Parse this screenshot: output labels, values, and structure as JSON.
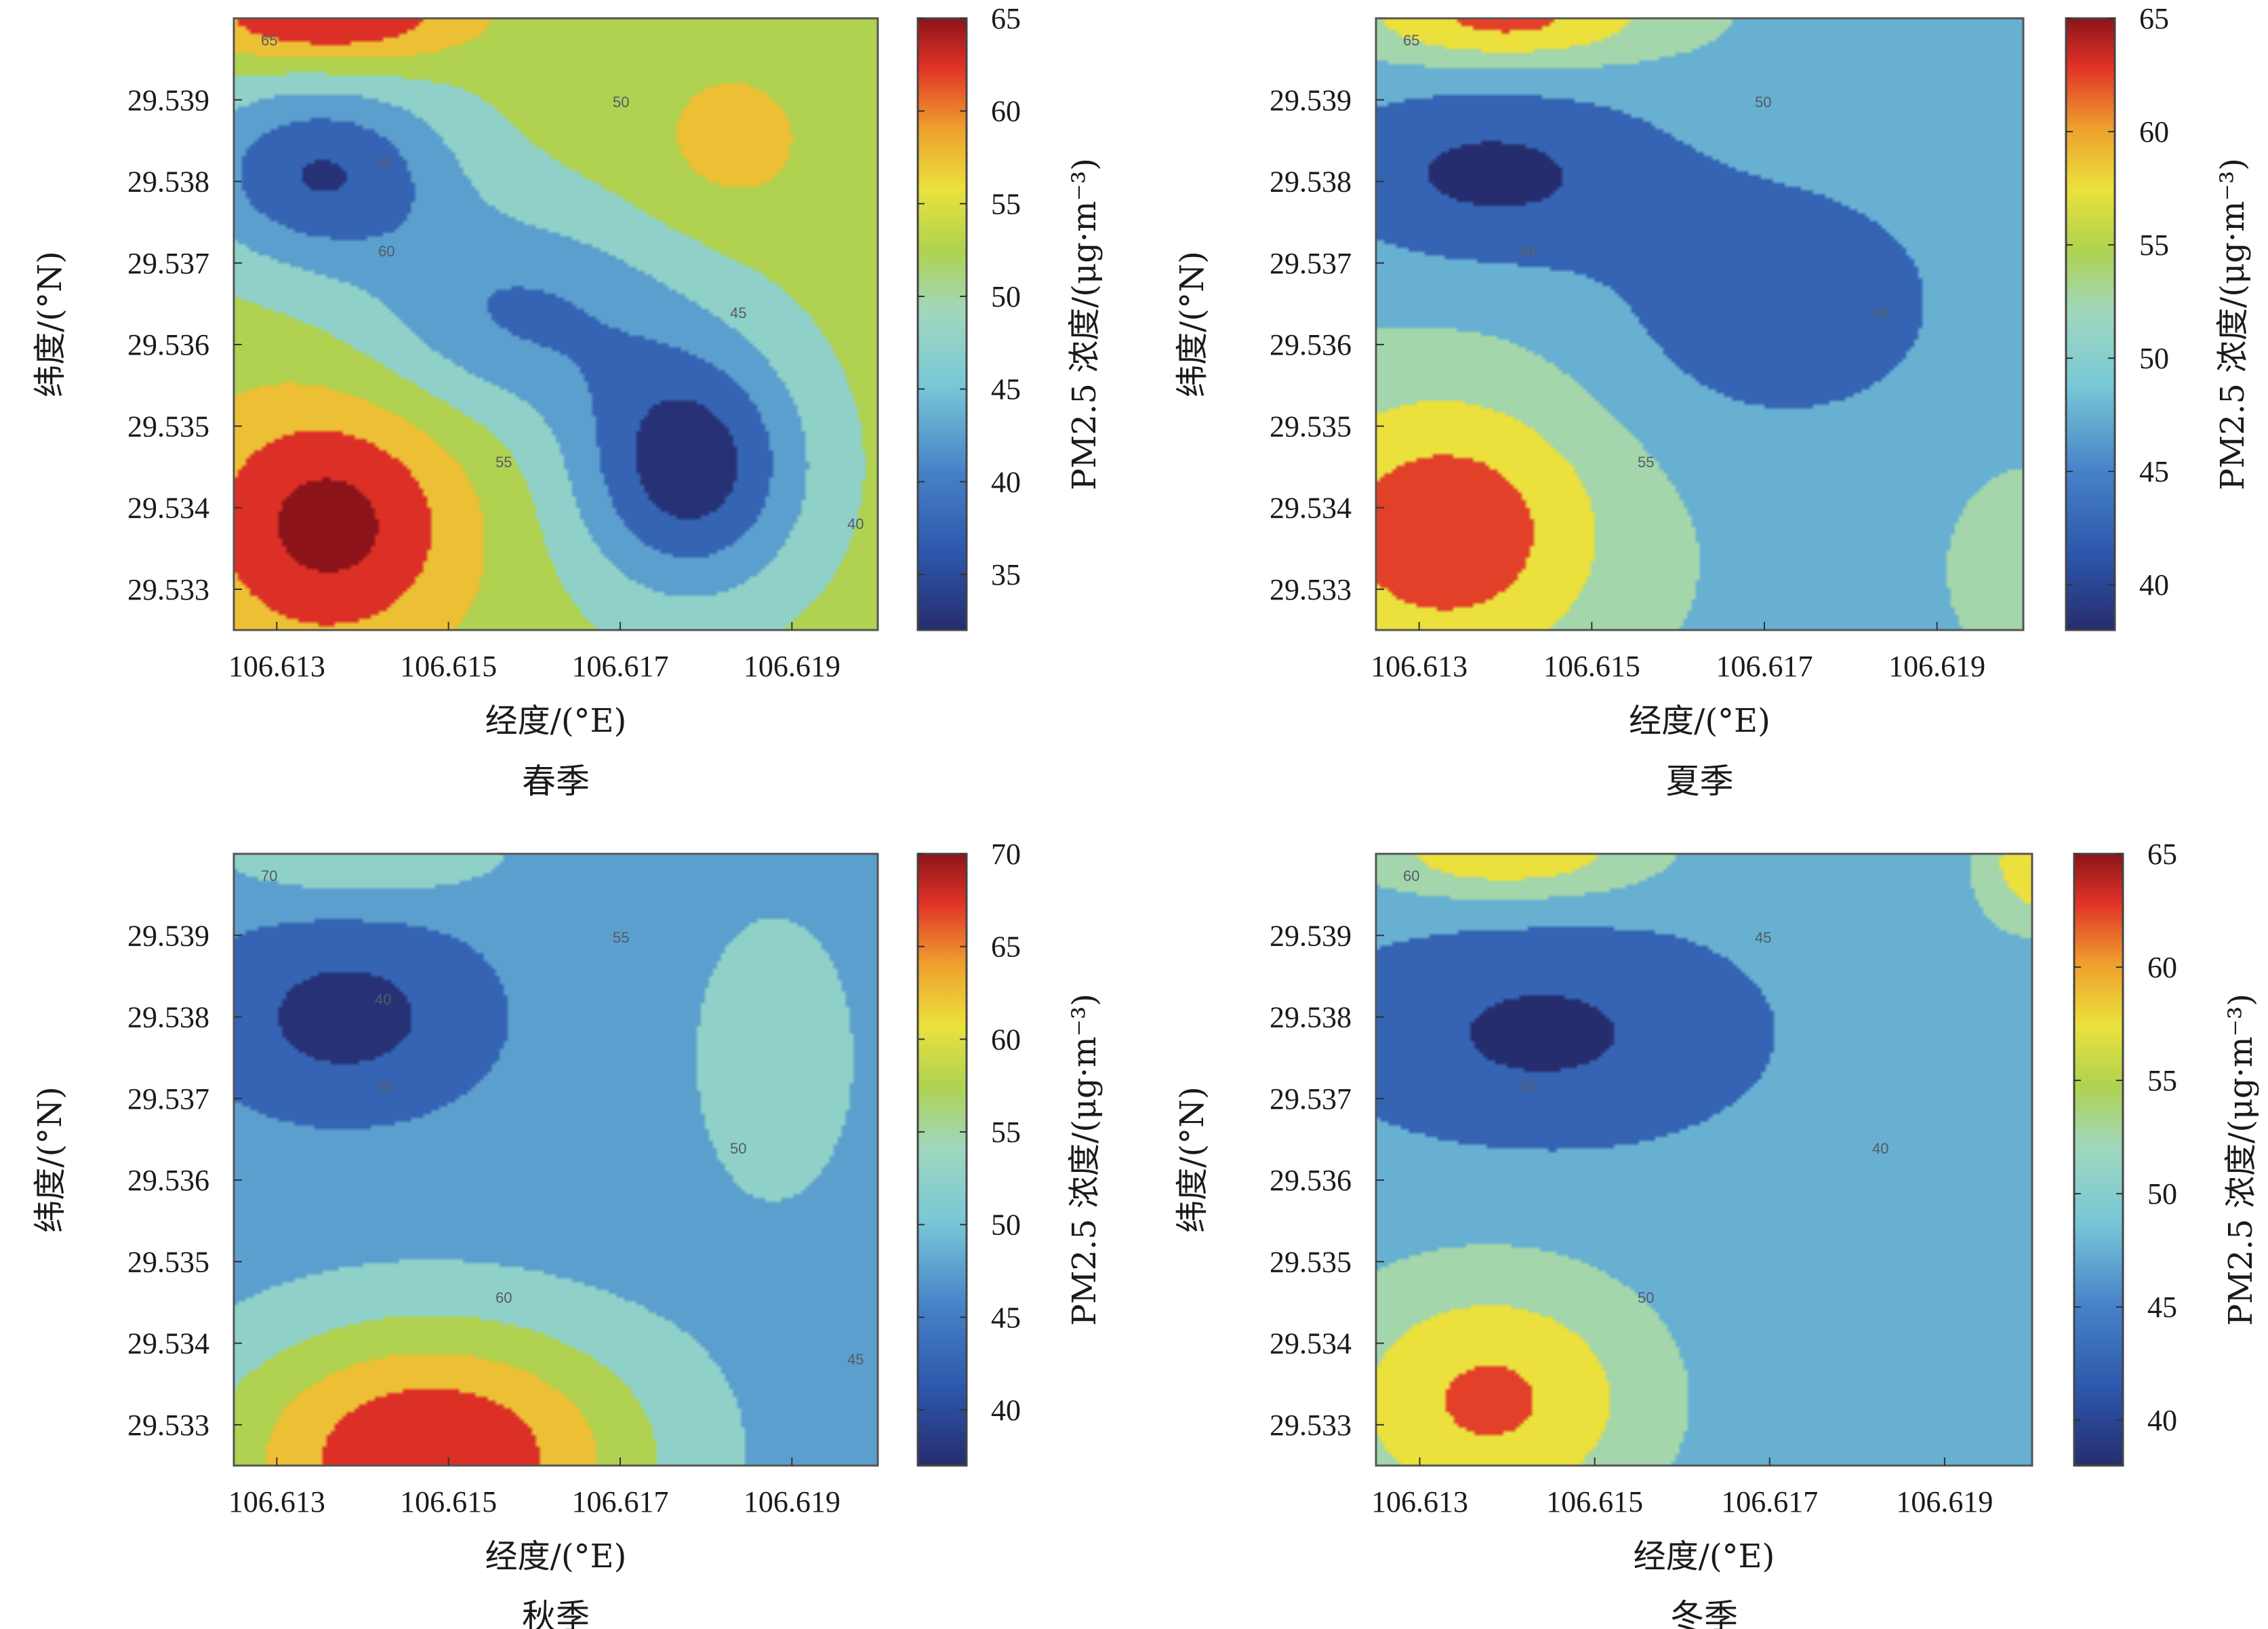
{
  "chart_data": [
    {
      "type": "heatmap",
      "title": "春季",
      "xlabel": "经度/(°E)",
      "ylabel": "纬度/(°N)",
      "colorbar_label": "PM2.5 浓度/(μg·m⁻³)",
      "x_ticks": [
        "106.613",
        "106.615",
        "106.617",
        "106.619"
      ],
      "x_tick_values": [
        106.613,
        106.615,
        106.617,
        106.619
      ],
      "y_ticks": [
        "29.539",
        "29.538",
        "29.537",
        "29.536",
        "29.535",
        "29.534",
        "29.533"
      ],
      "y_tick_values": [
        29.539,
        29.538,
        29.537,
        29.536,
        29.535,
        29.534,
        29.533
      ],
      "xlim": [
        106.6125,
        106.62
      ],
      "ylim": [
        29.5325,
        29.54
      ],
      "colorbar_ticks": [
        "35",
        "40",
        "45",
        "50",
        "55",
        "60",
        "65"
      ],
      "colorbar_tick_values": [
        35,
        40,
        45,
        50,
        55,
        60,
        65
      ],
      "color_range": [
        32,
        65
      ],
      "background_value": 52,
      "contour_labels": [
        "65",
        "60",
        "55",
        "50",
        "45",
        "40",
        "35"
      ],
      "blobs": [
        {
          "x": 106.6136,
          "y": 29.5338,
          "amp": 15,
          "sx": 0.0011,
          "sy": 0.0011
        },
        {
          "x": 106.6136,
          "y": 29.54,
          "amp": 14,
          "sx": 0.0011,
          "sy": 0.0004
        },
        {
          "x": 106.6183,
          "y": 29.5385,
          "amp": 5,
          "sx": 0.0007,
          "sy": 0.0007
        },
        {
          "x": 106.6135,
          "y": 29.5381,
          "amp": -17,
          "sx": 0.0011,
          "sy": 0.0008
        },
        {
          "x": 106.6178,
          "y": 29.5345,
          "amp": -20,
          "sx": 0.00095,
          "sy": 0.0011
        },
        {
          "x": 106.6158,
          "y": 29.5364,
          "amp": -12,
          "sx": 0.0013,
          "sy": 0.0009
        }
      ]
    },
    {
      "type": "heatmap",
      "title": "夏季",
      "xlabel": "经度/(°E)",
      "ylabel": "纬度/(°N)",
      "colorbar_label": "PM2.5 浓度/(μg·m⁻³)",
      "x_ticks": [
        "106.613",
        "106.615",
        "106.617",
        "106.619"
      ],
      "x_tick_values": [
        106.613,
        106.615,
        106.617,
        106.619
      ],
      "y_ticks": [
        "29.539",
        "29.538",
        "29.537",
        "29.536",
        "29.535",
        "29.534",
        "29.533"
      ],
      "y_tick_values": [
        29.539,
        29.538,
        29.537,
        29.536,
        29.535,
        29.534,
        29.533
      ],
      "xlim": [
        106.6125,
        106.62
      ],
      "ylim": [
        29.5325,
        29.54
      ],
      "colorbar_ticks": [
        "40",
        "45",
        "50",
        "55",
        "60",
        "65"
      ],
      "colorbar_tick_values": [
        40,
        45,
        50,
        55,
        60,
        65
      ],
      "color_range": [
        38,
        65
      ],
      "background_value": 49,
      "contour_labels": [
        "65",
        "60",
        "55",
        "50",
        "45"
      ],
      "blobs": [
        {
          "x": 106.6133,
          "y": 29.5337,
          "amp": 15,
          "sx": 0.0013,
          "sy": 0.0012
        },
        {
          "x": 106.614,
          "y": 29.54,
          "amp": 13,
          "sx": 0.0012,
          "sy": 0.0004
        },
        {
          "x": 106.6138,
          "y": 29.5381,
          "amp": -10,
          "sx": 0.0015,
          "sy": 0.0008
        },
        {
          "x": 106.6172,
          "y": 29.5365,
          "amp": -8,
          "sx": 0.0014,
          "sy": 0.0011
        },
        {
          "x": 106.62,
          "y": 29.5333,
          "amp": 5,
          "sx": 0.0005,
          "sy": 0.0007
        }
      ]
    },
    {
      "type": "heatmap",
      "title": "秋季",
      "xlabel": "经度/(°E)",
      "ylabel": "纬度/(°N)",
      "colorbar_label": "PM2.5 浓度/(μg·m⁻³)",
      "x_ticks": [
        "106.613",
        "106.615",
        "106.617",
        "106.619"
      ],
      "x_tick_values": [
        106.613,
        106.615,
        106.617,
        106.619
      ],
      "y_ticks": [
        "29.539",
        "29.538",
        "29.537",
        "29.536",
        "29.535",
        "29.534",
        "29.533"
      ],
      "y_tick_values": [
        29.539,
        29.538,
        29.537,
        29.536,
        29.535,
        29.534,
        29.533
      ],
      "xlim": [
        106.6125,
        106.62
      ],
      "ylim": [
        29.5325,
        29.54
      ],
      "colorbar_ticks": [
        "40",
        "45",
        "50",
        "55",
        "60",
        "65",
        "70"
      ],
      "colorbar_tick_values": [
        40,
        45,
        50,
        55,
        60,
        65,
        70
      ],
      "color_range": [
        37,
        70
      ],
      "background_value": 47,
      "contour_labels": [
        "70",
        "65",
        "60",
        "55",
        "50",
        "45",
        "40"
      ],
      "blobs": [
        {
          "x": 106.6148,
          "y": 29.5326,
          "amp": 23,
          "sx": 0.0018,
          "sy": 0.0012
        },
        {
          "x": 106.614,
          "y": 29.54,
          "amp": 8,
          "sx": 0.0012,
          "sy": 0.0004
        },
        {
          "x": 106.6138,
          "y": 29.538,
          "amp": -9,
          "sx": 0.0011,
          "sy": 0.0008
        },
        {
          "x": 106.6188,
          "y": 29.5375,
          "amp": 5,
          "sx": 0.0009,
          "sy": 0.0017
        }
      ]
    },
    {
      "type": "heatmap",
      "title": "冬季",
      "xlabel": "经度/(°E)",
      "ylabel": "纬度/(°N)",
      "colorbar_label": "PM2.5 浓度/(μg·m⁻³)",
      "x_ticks": [
        "106.613",
        "106.615",
        "106.617",
        "106.619"
      ],
      "x_tick_values": [
        106.613,
        106.615,
        106.617,
        106.619
      ],
      "y_ticks": [
        "29.539",
        "29.538",
        "29.537",
        "29.536",
        "29.535",
        "29.534",
        "29.533"
      ],
      "y_tick_values": [
        29.539,
        29.538,
        29.537,
        29.536,
        29.535,
        29.534,
        29.533
      ],
      "xlim": [
        106.6125,
        106.62
      ],
      "ylim": [
        29.5325,
        29.54
      ],
      "colorbar_ticks": [
        "40",
        "45",
        "50",
        "55",
        "60",
        "65"
      ],
      "colorbar_tick_values": [
        40,
        45,
        50,
        55,
        60,
        65
      ],
      "color_range": [
        38,
        65
      ],
      "background_value": 47,
      "contour_labels": [
        "60",
        "55",
        "50",
        "45",
        "40"
      ],
      "blobs": [
        {
          "x": 106.6138,
          "y": 29.5333,
          "amp": 14,
          "sx": 0.0013,
          "sy": 0.0011
        },
        {
          "x": 106.614,
          "y": 29.54,
          "amp": 12,
          "sx": 0.0012,
          "sy": 0.0004
        },
        {
          "x": 106.6202,
          "y": 29.5399,
          "amp": 14,
          "sx": 0.0005,
          "sy": 0.0005
        },
        {
          "x": 106.6144,
          "y": 29.5378,
          "amp": -8,
          "sx": 0.0016,
          "sy": 0.0009
        },
        {
          "x": 106.6195,
          "y": 29.5368,
          "amp": 3,
          "sx": 0.0005,
          "sy": 0.0016
        }
      ]
    }
  ]
}
